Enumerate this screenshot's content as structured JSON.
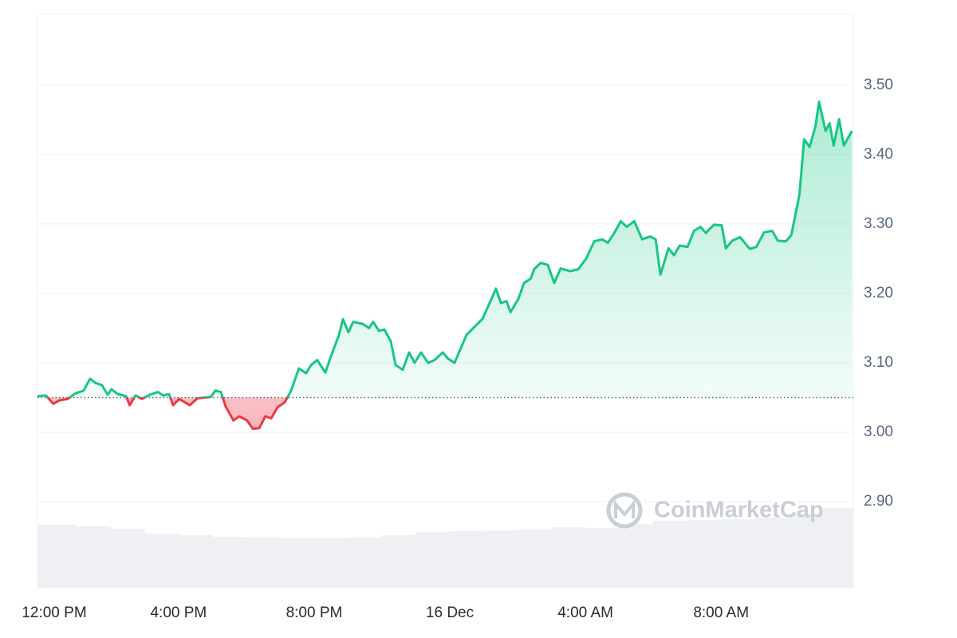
{
  "chart_data": {
    "type": "line",
    "x": [
      -0.16,
      0.09,
      0.31,
      0.49,
      0.73,
      0.96,
      1.2,
      1.39,
      1.55,
      1.74,
      1.91,
      2.02,
      2.21,
      2.45,
      2.56,
      2.73,
      2.92,
      3.15,
      3.39,
      3.55,
      3.72,
      3.84,
      4.02,
      4.33,
      4.56,
      4.96,
      5.08,
      5.25,
      5.39,
      5.62,
      5.79,
      6.02,
      6.19,
      6.38,
      6.56,
      6.73,
      6.92,
      7.13,
      7.32,
      7.55,
      7.76,
      7.91,
      8.09,
      8.33,
      8.49,
      8.73,
      8.85,
      9.01,
      9.15,
      9.44,
      9.62,
      9.74,
      9.91,
      10.07,
      10.26,
      10.4,
      10.61,
      10.8,
      10.96,
      11.15,
      11.36,
      11.55,
      11.79,
      11.95,
      12.14,
      12.49,
      12.73,
      12.96,
      13.2,
      13.36,
      13.51,
      13.67,
      13.79,
      14.02,
      14.19,
      14.38,
      14.49,
      14.68,
      14.89,
      15.08,
      15.27,
      15.55,
      15.79,
      16.02,
      16.26,
      16.49,
      16.66,
      16.85,
      17.04,
      17.22,
      17.44,
      17.67,
      17.91,
      18.07,
      18.21,
      18.45,
      18.61,
      18.78,
      19.01,
      19.2,
      19.39,
      19.55,
      19.79,
      20.02,
      20.14,
      20.33,
      20.56,
      20.85,
      21.04,
      21.27,
      21.51,
      21.67,
      21.91,
      22.07,
      22.31,
      22.45,
      22.61,
      22.78,
      22.89,
      23.08,
      23.2,
      23.32,
      23.48,
      23.62,
      23.79,
      23.86
    ],
    "values": [
      3.052,
      3.053,
      3.041,
      3.046,
      3.048,
      3.056,
      3.06,
      3.077,
      3.071,
      3.068,
      3.054,
      3.062,
      3.055,
      3.052,
      3.039,
      3.053,
      3.048,
      3.054,
      3.058,
      3.053,
      3.055,
      3.039,
      3.048,
      3.039,
      3.049,
      3.051,
      3.06,
      3.058,
      3.037,
      3.017,
      3.023,
      3.017,
      3.005,
      3.006,
      3.023,
      3.02,
      3.036,
      3.043,
      3.06,
      3.092,
      3.085,
      3.097,
      3.104,
      3.086,
      3.109,
      3.14,
      3.163,
      3.144,
      3.159,
      3.156,
      3.15,
      3.159,
      3.146,
      3.148,
      3.131,
      3.097,
      3.09,
      3.115,
      3.1,
      3.115,
      3.1,
      3.104,
      3.115,
      3.106,
      3.1,
      3.14,
      3.152,
      3.163,
      3.189,
      3.207,
      3.186,
      3.189,
      3.173,
      3.192,
      3.215,
      3.221,
      3.235,
      3.244,
      3.241,
      3.215,
      3.236,
      3.232,
      3.235,
      3.25,
      3.275,
      3.278,
      3.273,
      3.287,
      3.304,
      3.296,
      3.304,
      3.278,
      3.282,
      3.278,
      3.227,
      3.265,
      3.255,
      3.269,
      3.267,
      3.29,
      3.296,
      3.287,
      3.299,
      3.298,
      3.265,
      3.276,
      3.281,
      3.264,
      3.267,
      3.288,
      3.29,
      3.276,
      3.275,
      3.284,
      3.342,
      3.422,
      3.411,
      3.44,
      3.476,
      3.434,
      3.445,
      3.413,
      3.451,
      3.413,
      3.428,
      3.434
    ],
    "baseline": 3.05,
    "up_color": "#16c784",
    "down_color": "#ea3943",
    "volume_x": [
      -0.16,
      1,
      2,
      3,
      4,
      5,
      6,
      7,
      8,
      9,
      10,
      11,
      12,
      13,
      14,
      15,
      16,
      17,
      18,
      19,
      20,
      21,
      22,
      23
    ],
    "volume_values": [
      19.8,
      19.3,
      18.5,
      17,
      16.5,
      16,
      15.8,
      15.5,
      15.5,
      15.8,
      16.5,
      17.5,
      17.8,
      18,
      18.3,
      19,
      18.8,
      20,
      21,
      21.3,
      21.5,
      22,
      23.3,
      25
    ],
    "volume_color": "#eef0f3",
    "xlim": [
      -0.16,
      23.9
    ],
    "ylim": [
      2.776,
      3.602
    ],
    "y2lim": [
      0,
      180
    ],
    "xticks": [
      {
        "value": 0,
        "label": "12:00 PM"
      },
      {
        "value": 4,
        "label": "4:00 PM"
      },
      {
        "value": 8,
        "label": "8:00 PM"
      },
      {
        "value": 12,
        "label": "16 Dec"
      },
      {
        "value": 16,
        "label": "4:00 AM"
      },
      {
        "value": 20,
        "label": "8:00 AM"
      }
    ],
    "yticks": [
      {
        "value": 2.9,
        "label": "2.90"
      },
      {
        "value": 3.0,
        "label": "3.00"
      },
      {
        "value": 3.1,
        "label": "3.10"
      },
      {
        "value": 3.2,
        "label": "3.20"
      },
      {
        "value": 3.3,
        "label": "3.30"
      },
      {
        "value": 3.4,
        "label": "3.40"
      },
      {
        "value": 3.5,
        "label": "3.50"
      }
    ],
    "grid": true,
    "watermark": "CoinMarketCap"
  }
}
